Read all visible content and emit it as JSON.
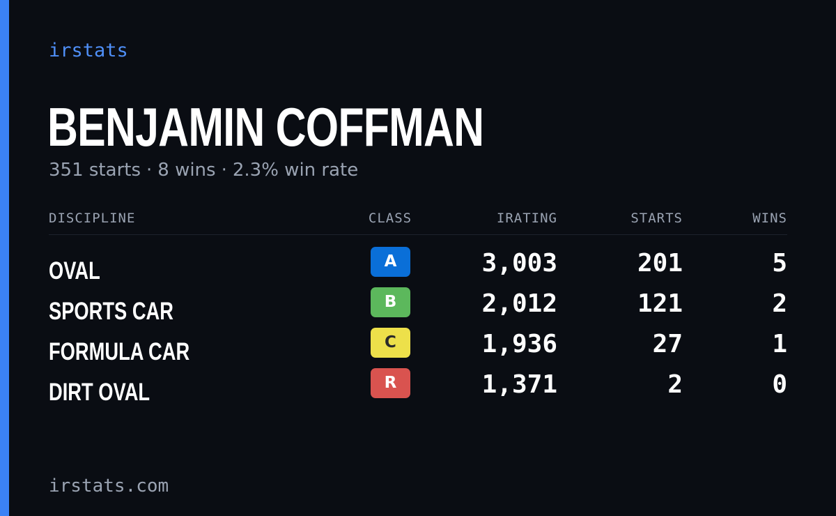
{
  "brand": "irstats",
  "driver": {
    "name": "BENJAMIN COFFMAN",
    "summary_starts": "351 starts",
    "summary_wins": "8 wins",
    "summary_win_rate": "2.3% win rate",
    "separator": "·"
  },
  "table": {
    "headers": {
      "discipline": "DISCIPLINE",
      "class": "CLASS",
      "irating": "IRATING",
      "starts": "STARTS",
      "wins": "WINS"
    },
    "rows": [
      {
        "discipline": "OVAL",
        "class": "A",
        "class_color": "#0a6fd8",
        "class_text_color": "#ffffff",
        "irating": "3,003",
        "starts": "201",
        "wins": "5"
      },
      {
        "discipline": "SPORTS CAR",
        "class": "B",
        "class_color": "#5cb85c",
        "class_text_color": "#ffffff",
        "irating": "2,012",
        "starts": "121",
        "wins": "2"
      },
      {
        "discipline": "FORMULA CAR",
        "class": "C",
        "class_color": "#ede04a",
        "class_text_color": "#2a2a2a",
        "irating": "1,936",
        "starts": "27",
        "wins": "1"
      },
      {
        "discipline": "DIRT OVAL",
        "class": "R",
        "class_color": "#d9534f",
        "class_text_color": "#ffffff",
        "irating": "1,371",
        "starts": "2",
        "wins": "0"
      }
    ]
  },
  "footer": "irstats.com",
  "colors": {
    "accent": "#3b82f6",
    "background": "#0a0d13",
    "muted_text": "#9aa3b2"
  }
}
